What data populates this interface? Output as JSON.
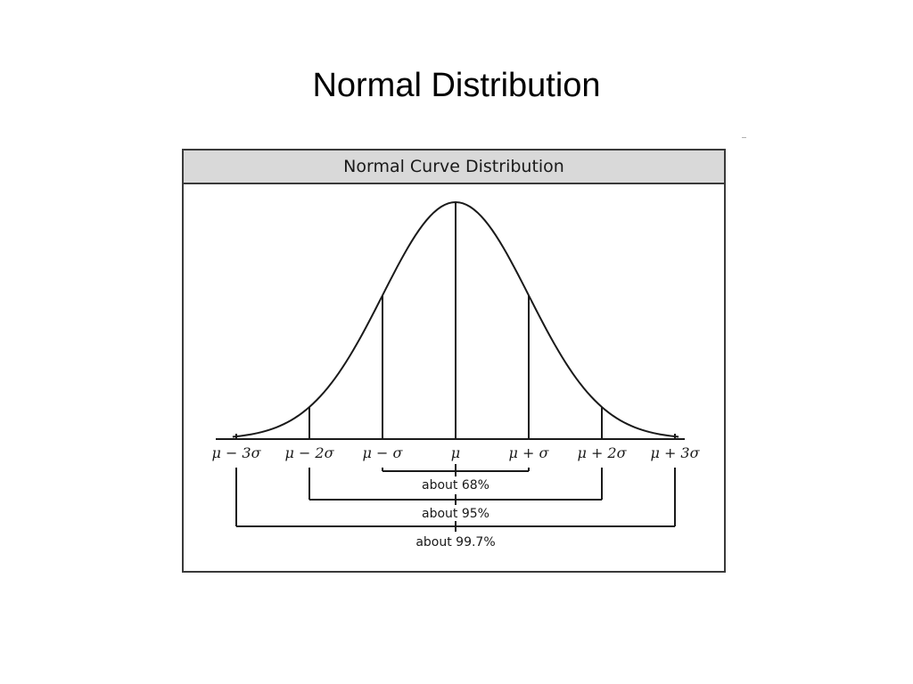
{
  "slide": {
    "title": "Normal Distribution"
  },
  "figure": {
    "header": "Normal Curve Distribution",
    "axis_labels": [
      "μ − 3σ",
      "μ − 2σ",
      "μ − σ",
      "μ",
      "μ + σ",
      "μ + 2σ",
      "μ + 3σ"
    ],
    "intervals": [
      {
        "label": "about 68%",
        "sigma": 1
      },
      {
        "label": "about 95%",
        "sigma": 2
      },
      {
        "label": "about 99.7%",
        "sigma": 3
      }
    ],
    "line_color": "#1a1a1a",
    "header_bg": "#d9d9d9"
  }
}
